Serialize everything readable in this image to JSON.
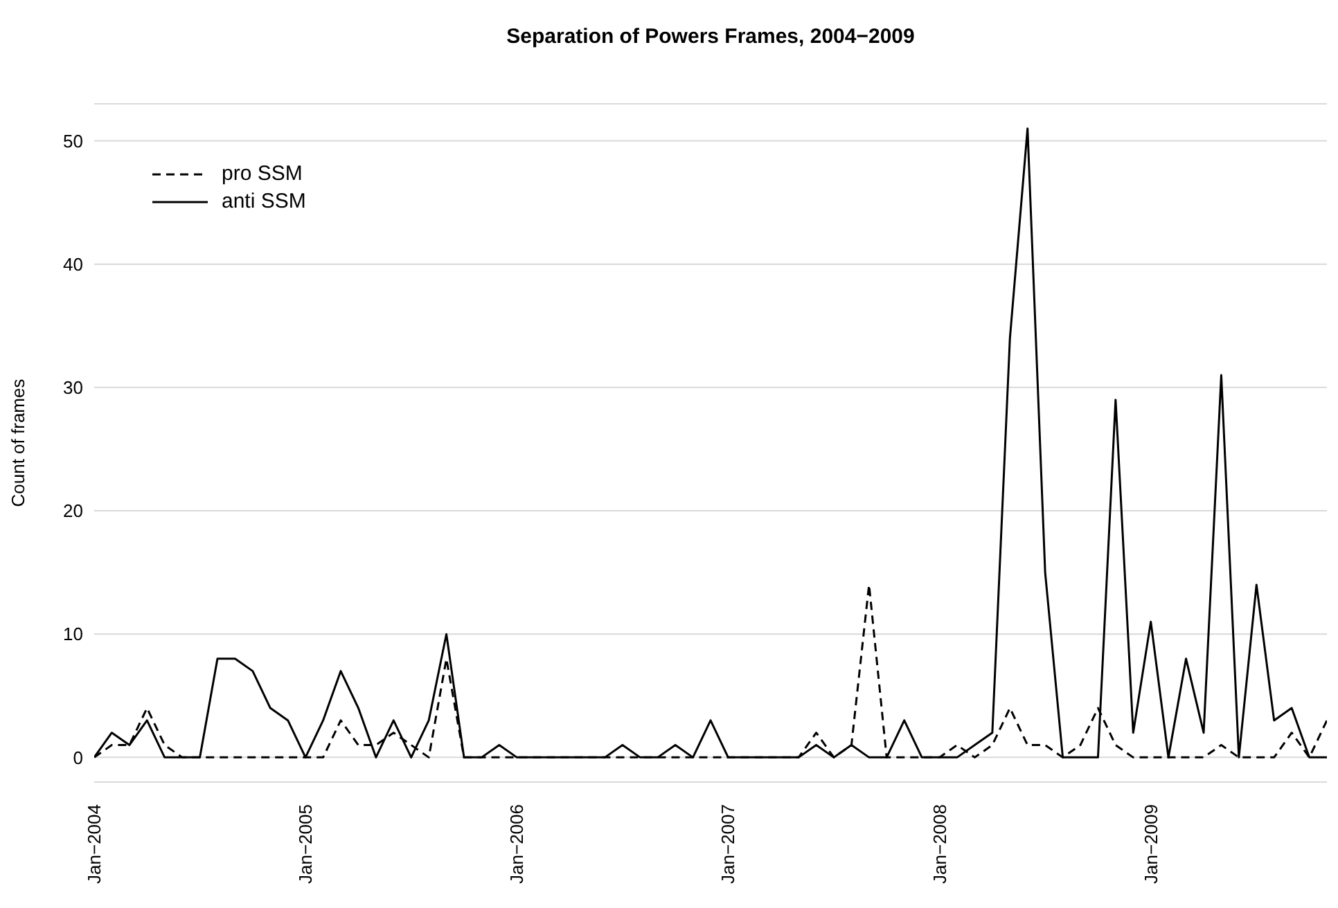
{
  "chart_data": {
    "type": "line",
    "title": "Separation of Powers Frames, 2004−2009",
    "ylabel": "Count of frames",
    "x": [
      "2004-01",
      "2004-02",
      "2004-03",
      "2004-04",
      "2004-05",
      "2004-06",
      "2004-07",
      "2004-08",
      "2004-09",
      "2004-10",
      "2004-11",
      "2004-12",
      "2005-01",
      "2005-02",
      "2005-03",
      "2005-04",
      "2005-05",
      "2005-06",
      "2005-07",
      "2005-08",
      "2005-09",
      "2005-10",
      "2005-11",
      "2005-12",
      "2006-01",
      "2006-02",
      "2006-03",
      "2006-04",
      "2006-05",
      "2006-06",
      "2006-07",
      "2006-08",
      "2006-09",
      "2006-10",
      "2006-11",
      "2006-12",
      "2007-01",
      "2007-02",
      "2007-03",
      "2007-04",
      "2007-05",
      "2007-06",
      "2007-07",
      "2007-08",
      "2007-09",
      "2007-10",
      "2007-11",
      "2007-12",
      "2008-01",
      "2008-02",
      "2008-03",
      "2008-04",
      "2008-05",
      "2008-06",
      "2008-07",
      "2008-08",
      "2008-09",
      "2008-10",
      "2008-11",
      "2008-12",
      "2009-01",
      "2009-02",
      "2009-03",
      "2009-04",
      "2009-05",
      "2009-06",
      "2009-07",
      "2009-08",
      "2009-09",
      "2009-10",
      "2009-11"
    ],
    "series": [
      {
        "name": "pro SSM",
        "color": "#000000",
        "line_style": "dashed",
        "values": [
          0,
          1,
          1,
          4,
          1,
          0,
          0,
          0,
          0,
          0,
          0,
          0,
          0,
          0,
          3,
          1,
          1,
          2,
          1,
          0,
          8,
          0,
          0,
          0,
          0,
          0,
          0,
          0,
          0,
          0,
          0,
          0,
          0,
          0,
          0,
          0,
          0,
          0,
          0,
          0,
          0,
          2,
          0,
          1,
          14,
          0,
          0,
          0,
          0,
          1,
          0,
          1,
          4,
          1,
          1,
          0,
          1,
          4,
          1,
          0,
          0,
          0,
          0,
          0,
          1,
          0,
          0,
          0,
          2,
          0,
          3
        ]
      },
      {
        "name": "anti SSM",
        "color": "#000000",
        "line_style": "solid",
        "values": [
          0,
          2,
          1,
          3,
          0,
          0,
          0,
          8,
          8,
          7,
          4,
          3,
          0,
          3,
          7,
          4,
          0,
          3,
          0,
          3,
          10,
          0,
          0,
          1,
          0,
          0,
          0,
          0,
          0,
          0,
          1,
          0,
          0,
          1,
          0,
          3,
          0,
          0,
          0,
          0,
          0,
          1,
          0,
          1,
          0,
          0,
          3,
          0,
          0,
          0,
          1,
          2,
          34,
          51,
          15,
          0,
          0,
          0,
          29,
          2,
          11,
          0,
          8,
          2,
          31,
          0,
          14,
          3,
          4,
          0,
          0
        ]
      }
    ],
    "xlim": [
      "2004-01",
      "2009-11"
    ],
    "xticks": [
      {
        "value": "2004-01",
        "label": "Jan−2004"
      },
      {
        "value": "2005-01",
        "label": "Jan−2005"
      },
      {
        "value": "2006-01",
        "label": "Jan−2006"
      },
      {
        "value": "2007-01",
        "label": "Jan−2007"
      },
      {
        "value": "2008-01",
        "label": "Jan−2008"
      },
      {
        "value": "2009-01",
        "label": "Jan−2009"
      }
    ],
    "ylim": [
      -2,
      53
    ],
    "yticks": [
      0,
      10,
      20,
      30,
      40,
      50
    ],
    "grid": "y",
    "legend": "top left"
  }
}
